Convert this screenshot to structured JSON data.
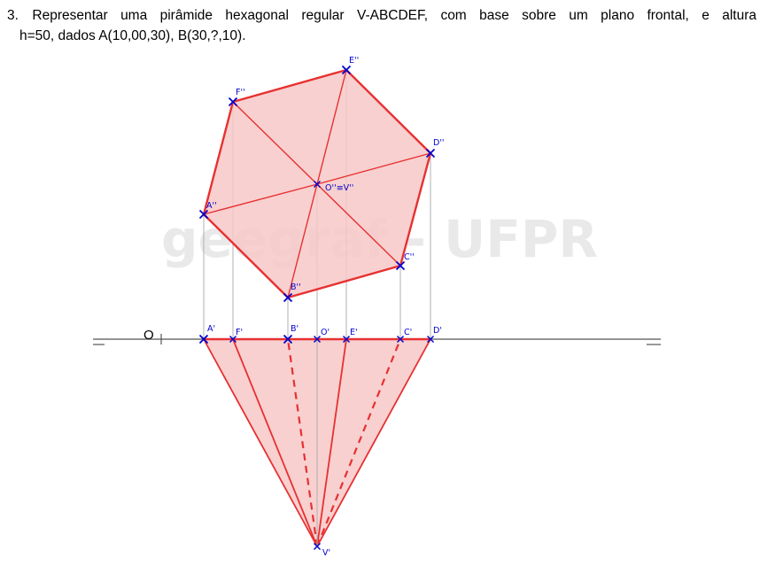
{
  "problem": {
    "number": "3.",
    "line1": "Representar uma pirâmide hexagonal regular V-ABCDEF, com base sobre um plano frontal, e altura",
    "line2": "h=50, dados A(10,00,30), B(30,?,10)."
  },
  "watermark": "geegraf - UFPR",
  "origin_label": "O",
  "labels": {
    "A2": "A''",
    "B2": "B''",
    "C2": "C''",
    "D2": "D''",
    "E2": "E''",
    "F2": "F''",
    "O2V2": "O''≡V''",
    "A1": "A'",
    "F1": "F'",
    "B1": "B'",
    "O1": "O'",
    "E1": "E'",
    "C1": "C'",
    "D1": "D'",
    "V1": "V'"
  },
  "colors": {
    "edge": "#e83030",
    "fill": "#f7c8c8",
    "marker": "#0000cc",
    "projector": "#b0b0b0",
    "ground_line": "#555555"
  }
}
